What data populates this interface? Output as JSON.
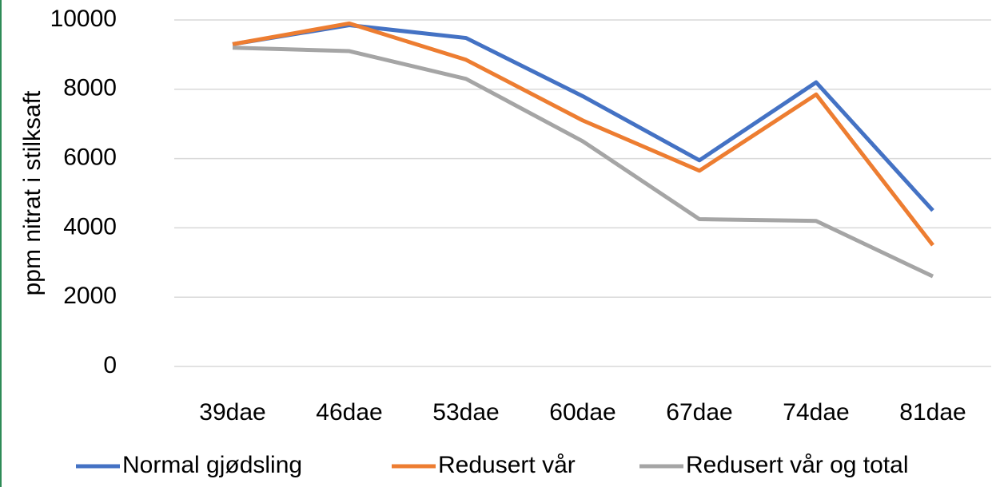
{
  "chart_data": {
    "type": "line",
    "y_label": "ppm nitrat i stilksaft",
    "categories": [
      "39dae",
      "46dae",
      "53dae",
      "60dae",
      "67dae",
      "74dae",
      "81dae"
    ],
    "series": [
      {
        "name": "Normal gjødsling",
        "color": "#4472c4",
        "values": [
          9300,
          9850,
          9480,
          7800,
          5950,
          8200,
          4500
        ]
      },
      {
        "name": "Redusert vår",
        "color": "#ed7d31",
        "values": [
          9300,
          9900,
          8850,
          7100,
          5650,
          7850,
          3500
        ]
      },
      {
        "name": "Redusert vår og total",
        "color": "#a5a5a5",
        "values": [
          9200,
          9100,
          8300,
          6500,
          4250,
          4200,
          2600
        ]
      }
    ],
    "ylim": [
      0,
      10000
    ],
    "yticks": [
      0,
      2000,
      4000,
      6000,
      8000,
      10000
    ],
    "grid": true,
    "legend": "bottom"
  }
}
